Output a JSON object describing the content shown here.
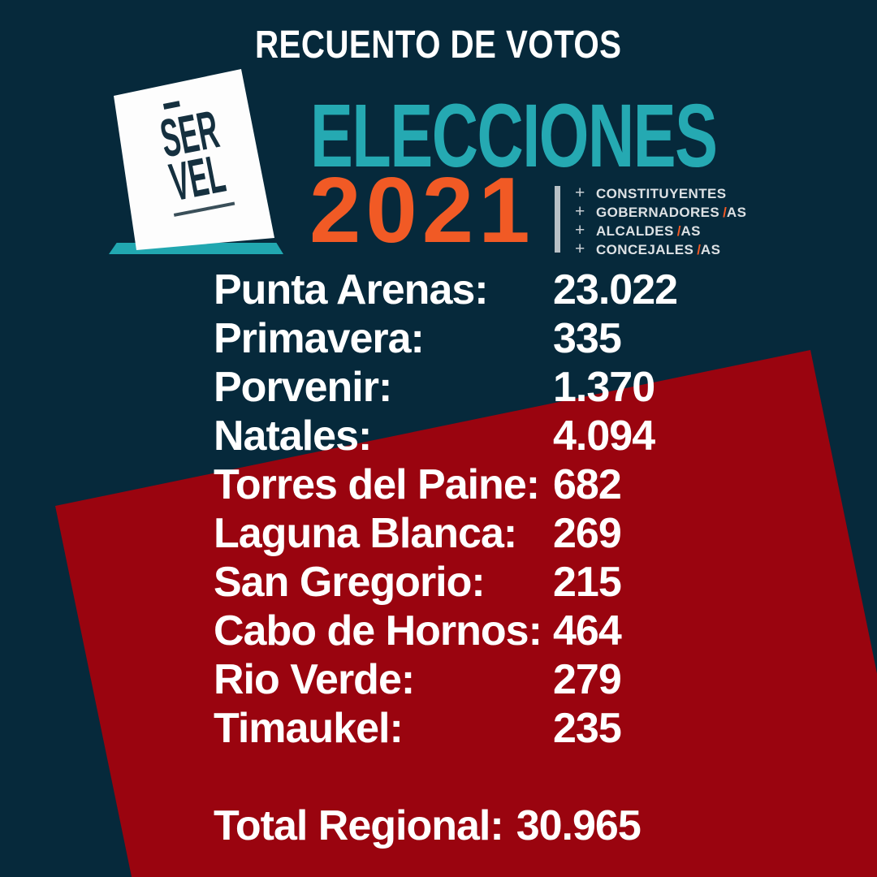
{
  "poster": {
    "title": "RECUENTO DE VOTOS"
  },
  "logo": {
    "ballot": {
      "line1": "SER",
      "line2": "VEL"
    },
    "brand": "ELECCIONES",
    "year": "2021",
    "categories": [
      {
        "plus": "+",
        "label": "CONSTITUYENTES",
        "slash": "",
        "suffix": ""
      },
      {
        "plus": "+",
        "label": "GOBERNADORES",
        "slash": "/",
        "suffix": "AS"
      },
      {
        "plus": "+",
        "label": "ALCALDES",
        "slash": "/",
        "suffix": "AS"
      },
      {
        "plus": "+",
        "label": "CONCEJALES",
        "slash": "/",
        "suffix": "AS"
      }
    ]
  },
  "results": [
    {
      "label": "Punta Arenas:",
      "value": "23.022"
    },
    {
      "label": "Primavera:",
      "value": "335"
    },
    {
      "label": "Porvenir:",
      "value": "1.370"
    },
    {
      "label": "Natales:",
      "value": "4.094"
    },
    {
      "label": "Torres del Paine:",
      "value": "682"
    },
    {
      "label": "Laguna Blanca:",
      "value": "269"
    },
    {
      "label": "San Gregorio:",
      "value": "215"
    },
    {
      "label": "Cabo de Hornos:",
      "value": "464"
    },
    {
      "label": "Rio Verde:",
      "value": "279"
    },
    {
      "label": "Timaukel:",
      "value": "235"
    }
  ],
  "total": {
    "label": "Total Regional:",
    "value": "30.965"
  },
  "colors": {
    "background_navy": "#06293b",
    "banner_red": "#9a040f",
    "brand_teal": "#25a9b2",
    "brand_orange": "#f15a25",
    "text_white": "#ffffff"
  }
}
